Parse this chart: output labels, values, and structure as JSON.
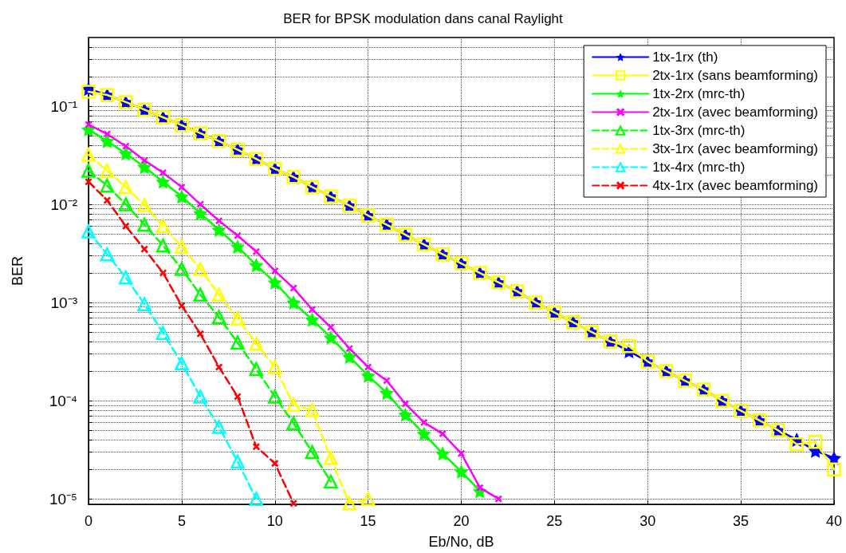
{
  "chart_data": {
    "type": "line",
    "title": "BER for BPSK modulation dans canal Raylight",
    "xlabel": "Eb/No, dB",
    "ylabel": "BER",
    "log": "y",
    "grid": true,
    "legend": "top right",
    "xlim": [
      0,
      40
    ],
    "xticks": [
      0,
      5,
      10,
      15,
      20,
      25,
      30,
      35,
      40
    ],
    "ylim": [
      8.8e-06,
      0.5
    ],
    "yticks": [
      {
        "value": 1e-05,
        "label": "10⁻⁵"
      },
      {
        "value": 2e-05,
        "label": null
      },
      {
        "value": 3e-05,
        "label": null
      },
      {
        "value": 4e-05,
        "label": null
      },
      {
        "value": 5e-05,
        "label": null
      },
      {
        "value": 6e-05,
        "label": null
      },
      {
        "value": 7e-05,
        "label": null
      },
      {
        "value": 8e-05,
        "label": null
      },
      {
        "value": 9e-05,
        "label": null
      },
      {
        "value": 0.0001,
        "label": "10⁻⁴"
      },
      {
        "value": 0.0002,
        "label": null
      },
      {
        "value": 0.0003,
        "label": null
      },
      {
        "value": 0.0004,
        "label": null
      },
      {
        "value": 0.0005,
        "label": null
      },
      {
        "value": 0.0006,
        "label": null
      },
      {
        "value": 0.0007,
        "label": null
      },
      {
        "value": 0.0008,
        "label": null
      },
      {
        "value": 0.0009,
        "label": null
      },
      {
        "value": 0.001,
        "label": "10⁻³"
      },
      {
        "value": 0.002,
        "label": null
      },
      {
        "value": 0.003,
        "label": null
      },
      {
        "value": 0.004,
        "label": null
      },
      {
        "value": 0.005,
        "label": null
      },
      {
        "value": 0.006,
        "label": null
      },
      {
        "value": 0.007,
        "label": null
      },
      {
        "value": 0.008,
        "label": null
      },
      {
        "value": 0.009,
        "label": null
      },
      {
        "value": 0.01,
        "label": "10⁻²"
      },
      {
        "value": 0.02,
        "label": null
      },
      {
        "value": 0.03,
        "label": null
      },
      {
        "value": 0.04,
        "label": null
      },
      {
        "value": 0.05,
        "label": null
      },
      {
        "value": 0.06,
        "label": null
      },
      {
        "value": 0.07,
        "label": null
      },
      {
        "value": 0.08,
        "label": null
      },
      {
        "value": 0.09,
        "label": null
      },
      {
        "value": 0.1,
        "label": "10⁻¹"
      },
      {
        "value": 0.2,
        "label": null
      },
      {
        "value": 0.3,
        "label": null
      },
      {
        "value": 0.4,
        "label": null
      }
    ],
    "series": [
      {
        "name": "1tx-1rx (th)",
        "color": "#0000ff",
        "marker": "star",
        "line_style": "solid",
        "x": [
          0,
          1,
          2,
          3,
          4,
          5,
          6,
          7,
          8,
          9,
          10,
          11,
          12,
          13,
          14,
          15,
          16,
          17,
          18,
          19,
          20,
          21,
          22,
          23,
          24,
          25,
          26,
          27,
          28,
          29,
          30,
          31,
          32,
          33,
          34,
          35,
          36,
          37,
          38,
          39,
          40
        ],
        "values": [
          0.15,
          0.13,
          0.11,
          0.092,
          0.077,
          0.064,
          0.053,
          0.044,
          0.036,
          0.029,
          0.023,
          0.019,
          0.015,
          0.012,
          0.0097,
          0.0077,
          0.0062,
          0.0049,
          0.0039,
          0.0031,
          0.0025,
          0.002,
          0.0016,
          0.0013,
          0.001,
          0.00079,
          0.00063,
          0.0005,
          0.0004,
          0.00032,
          0.00025,
          0.0002,
          0.00016,
          0.00013,
          0.0001,
          7.9e-05,
          6.3e-05,
          5e-05,
          4e-05,
          3.1e-05,
          2.6e-05
        ]
      },
      {
        "name": "2tx-1rx (sans beamforming)",
        "color": "#ffff00",
        "marker": "square",
        "line_style": "solid",
        "x": [
          0,
          1,
          2,
          3,
          4,
          5,
          6,
          7,
          8,
          9,
          10,
          11,
          12,
          13,
          14,
          15,
          16,
          17,
          18,
          19,
          20,
          21,
          22,
          23,
          24,
          25,
          26,
          27,
          28,
          29,
          30,
          31,
          32,
          33,
          34,
          35,
          36,
          37,
          38,
          39,
          40
        ],
        "values": [
          0.14,
          0.13,
          0.11,
          0.092,
          0.077,
          0.064,
          0.053,
          0.044,
          0.036,
          0.029,
          0.023,
          0.019,
          0.015,
          0.012,
          0.0097,
          0.0077,
          0.0062,
          0.0049,
          0.0039,
          0.0031,
          0.0025,
          0.002,
          0.0016,
          0.0013,
          0.001,
          0.00079,
          0.00063,
          0.0005,
          0.0004,
          0.00036,
          0.00025,
          0.0002,
          0.00016,
          0.00013,
          0.0001,
          7.9e-05,
          6.3e-05,
          5e-05,
          3.6e-05,
          3.8e-05,
          2e-05
        ]
      },
      {
        "name": "1tx-2rx (mrc-th)",
        "color": "#00ff00",
        "marker": "star",
        "line_style": "solid",
        "x": [
          0,
          1,
          2,
          3,
          4,
          5,
          6,
          7,
          8,
          9,
          10,
          11,
          12,
          13,
          14,
          15,
          16,
          17,
          18,
          19,
          20,
          21
        ],
        "values": [
          0.058,
          0.044,
          0.033,
          0.024,
          0.017,
          0.012,
          0.0081,
          0.0055,
          0.0037,
          0.0024,
          0.0016,
          0.001,
          0.00067,
          0.00044,
          0.00028,
          0.00018,
          0.00012,
          7.2e-05,
          4.6e-05,
          2.9e-05,
          1.9e-05,
          1.2e-05
        ]
      },
      {
        "name": "2tx-1rx (avec beamforming)",
        "color": "#ff00ff",
        "marker": "cross",
        "line_style": "solid",
        "x": [
          0,
          1,
          2,
          3,
          4,
          5,
          6,
          7,
          8,
          9,
          10,
          11,
          12,
          13,
          14,
          15,
          16,
          17,
          18,
          19,
          20,
          21,
          22
        ],
        "values": [
          0.065,
          0.052,
          0.039,
          0.028,
          0.021,
          0.015,
          0.01,
          0.0068,
          0.0048,
          0.0033,
          0.0021,
          0.0014,
          0.00085,
          0.00056,
          0.00034,
          0.00022,
          0.00016,
          9.3e-05,
          6e-05,
          4.6e-05,
          2.9e-05,
          1.3e-05,
          1e-05
        ]
      },
      {
        "name": "1tx-3rx (mrc-th)",
        "color": "#00ff00",
        "marker": "triangle",
        "line_style": "dashed",
        "x": [
          0,
          1,
          2,
          3,
          4,
          5,
          6,
          7,
          8,
          9,
          10,
          11,
          12,
          13
        ],
        "values": [
          0.022,
          0.0155,
          0.01,
          0.0062,
          0.0038,
          0.0022,
          0.0012,
          0.00071,
          0.00039,
          0.00021,
          0.00011,
          5.9e-05,
          3e-05,
          1.5e-05
        ]
      },
      {
        "name": "3tx-1rx (avec beamforming)",
        "color": "#ffff00",
        "marker": "triangle",
        "line_style": "dashed",
        "x": [
          0,
          1,
          2,
          3,
          4,
          5,
          6,
          7,
          8,
          9,
          10,
          11,
          12,
          13,
          14,
          15
        ],
        "values": [
          0.032,
          0.022,
          0.015,
          0.0098,
          0.006,
          0.0037,
          0.0022,
          0.0012,
          0.00069,
          0.00038,
          0.00022,
          9.1e-05,
          8e-05,
          2.6e-05,
          9e-06,
          1e-05
        ]
      },
      {
        "name": "1tx-4rx (mrc-th)",
        "color": "#00ffff",
        "marker": "triangle",
        "line_style": "dashed",
        "x": [
          0,
          1,
          2,
          3,
          4,
          5,
          6,
          7,
          8,
          9
        ],
        "values": [
          0.0053,
          0.0031,
          0.0018,
          0.00096,
          0.00049,
          0.00024,
          0.00011,
          5.4e-05,
          2.4e-05,
          1e-05
        ]
      },
      {
        "name": "4tx-1rx (avec beamforming)",
        "color": "#ff0000",
        "marker": "cross",
        "line_style": "dashed",
        "x": [
          0,
          1,
          2,
          3,
          4,
          5,
          6,
          7,
          8,
          9,
          10,
          11
        ],
        "values": [
          0.017,
          0.011,
          0.006,
          0.0035,
          0.002,
          0.00093,
          0.00048,
          0.00022,
          0.00011,
          3.4e-05,
          2.3e-05,
          9e-06
        ]
      }
    ]
  }
}
